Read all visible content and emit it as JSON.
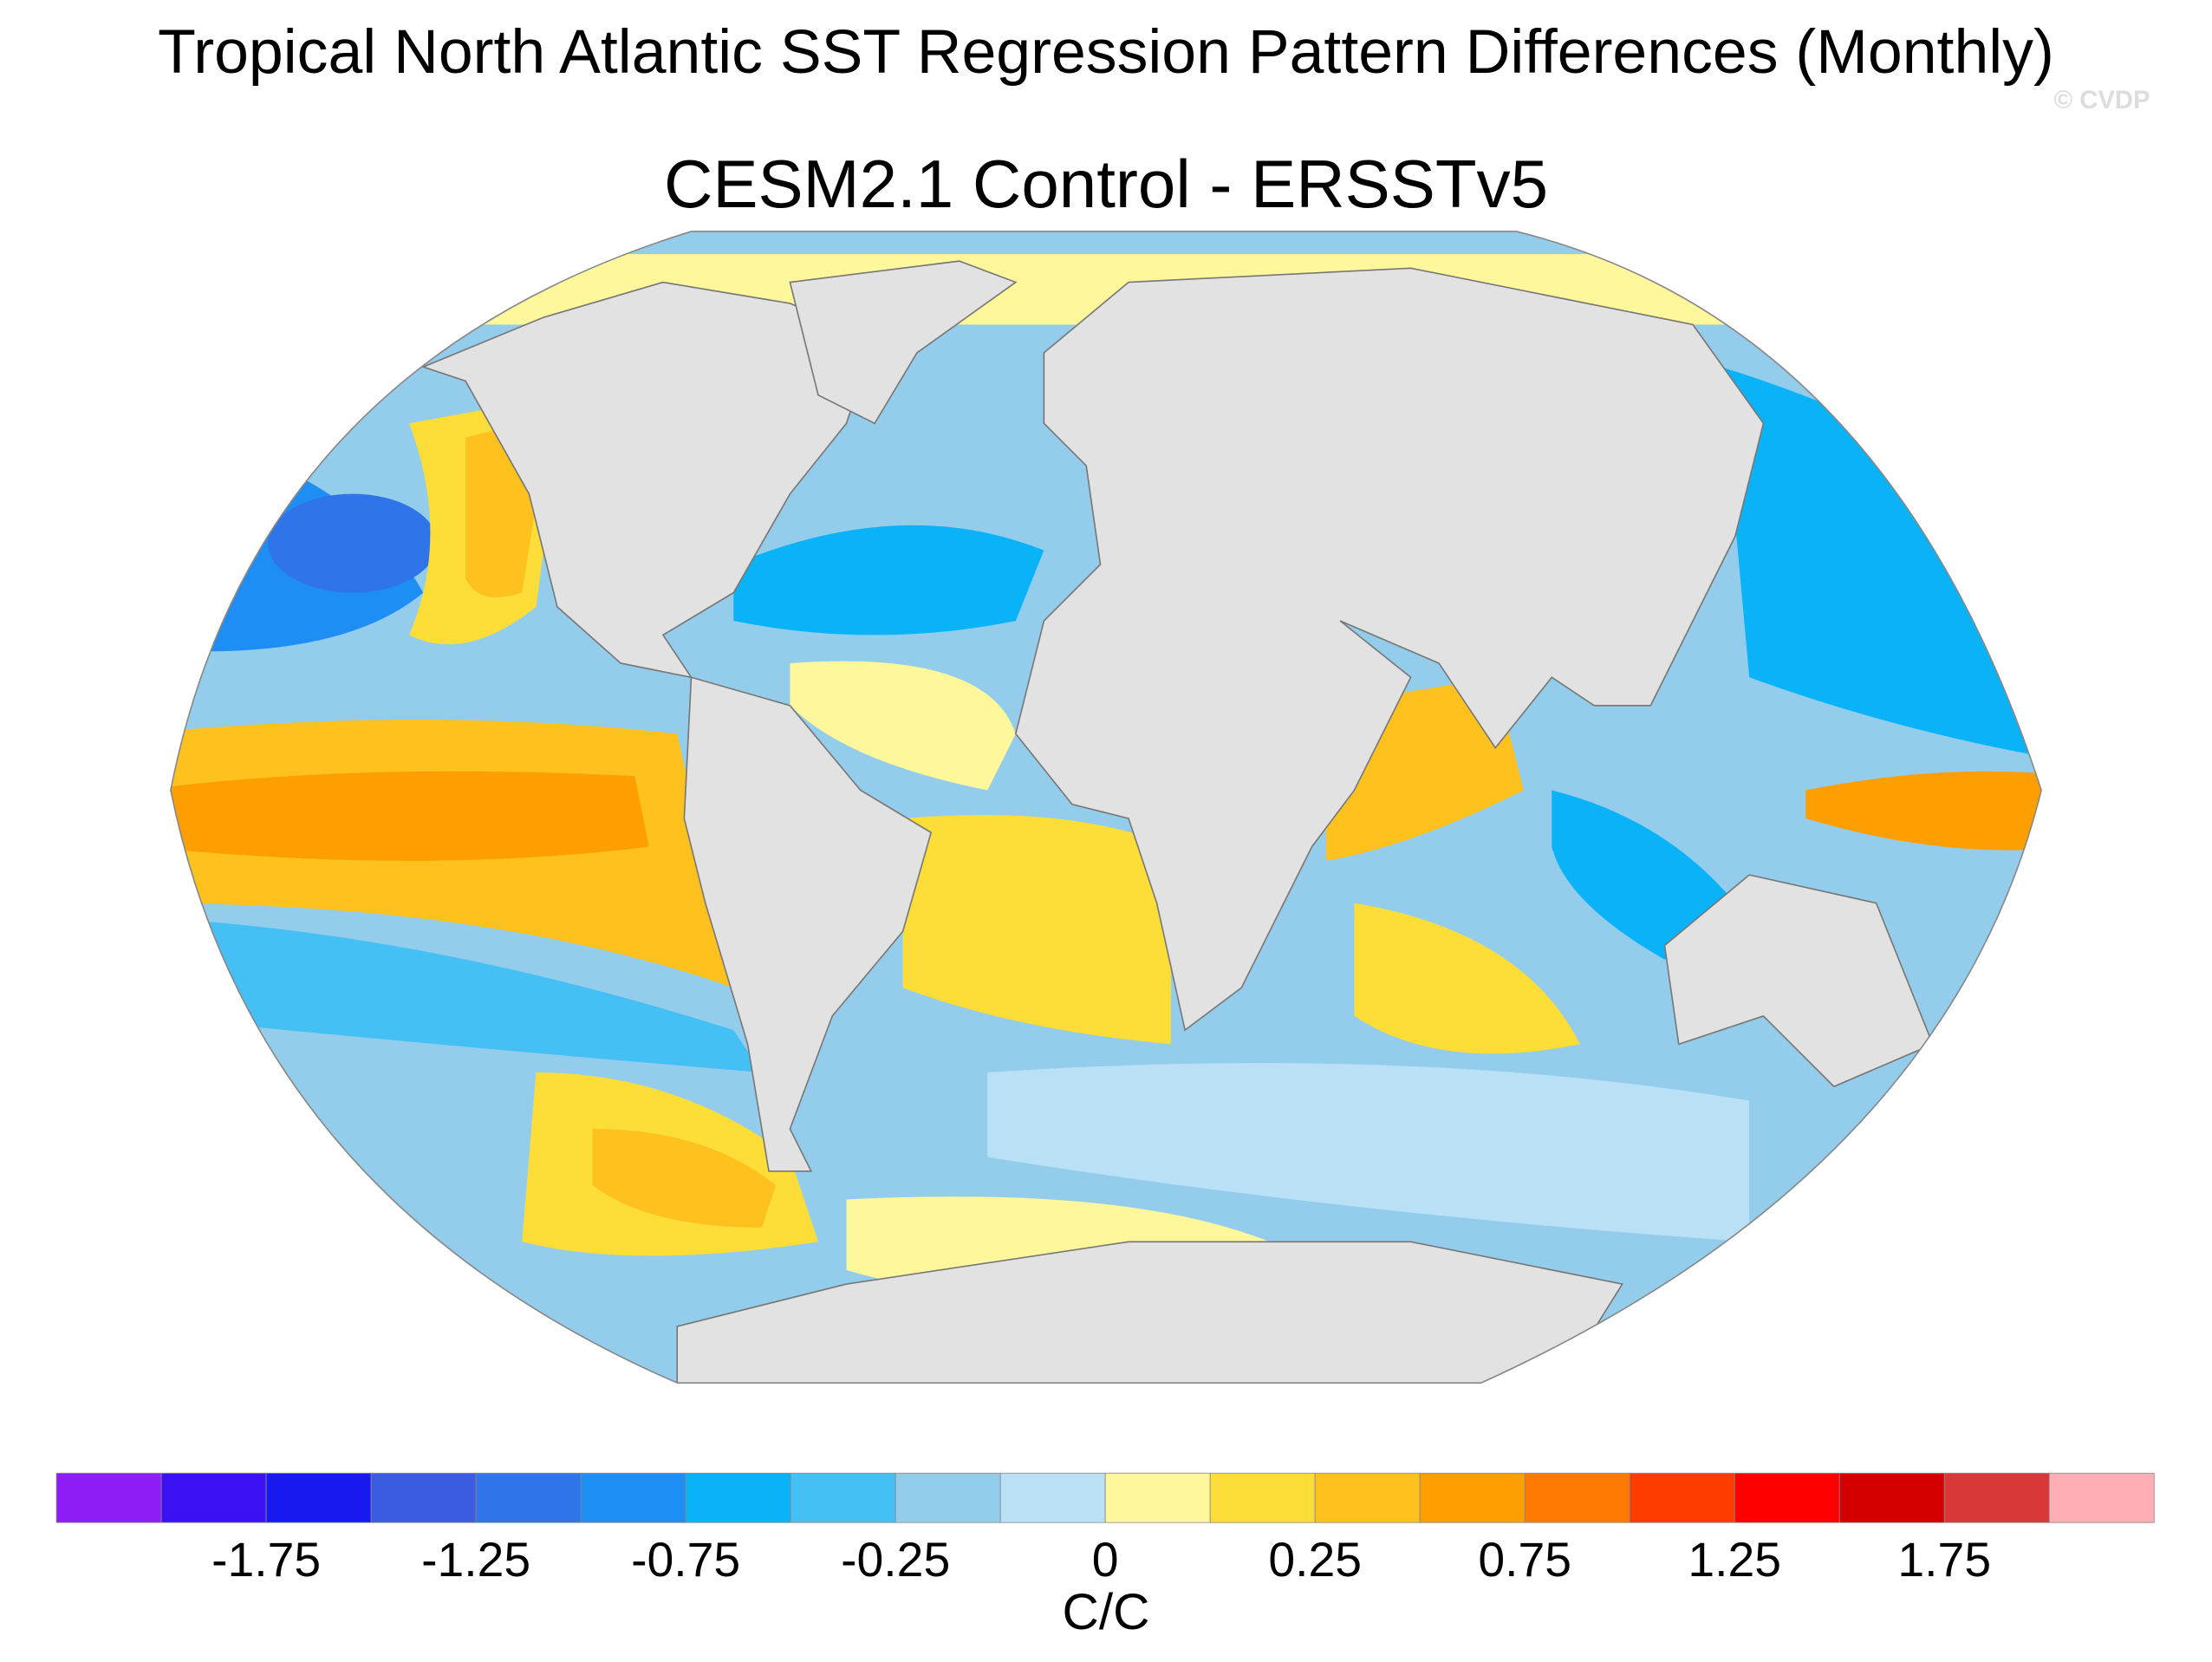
{
  "title": "Tropical North Atlantic SST Regression Pattern Differences (Monthly)",
  "subtitle": "CESM2.1 Control - ERSSTv5",
  "watermark": "© CVDP",
  "colorbar": {
    "colors": [
      "#8e1cf4",
      "#3c12f5",
      "#1719f0",
      "#3b5be0",
      "#2f74e8",
      "#1e8ef5",
      "#0ab2f7",
      "#45c0f4",
      "#93cdeb",
      "#b9e0f5",
      "#fff79b",
      "#fddd38",
      "#fec11e",
      "#fd9f00",
      "#fd7b00",
      "#ff3c00",
      "#fd0000",
      "#d40000",
      "#d83838",
      "#feaeb4"
    ],
    "ticks": [
      -1.75,
      -1.25,
      -0.75,
      -0.25,
      0,
      0.25,
      0.75,
      1.25,
      1.75
    ],
    "label": "C/C"
  }
}
